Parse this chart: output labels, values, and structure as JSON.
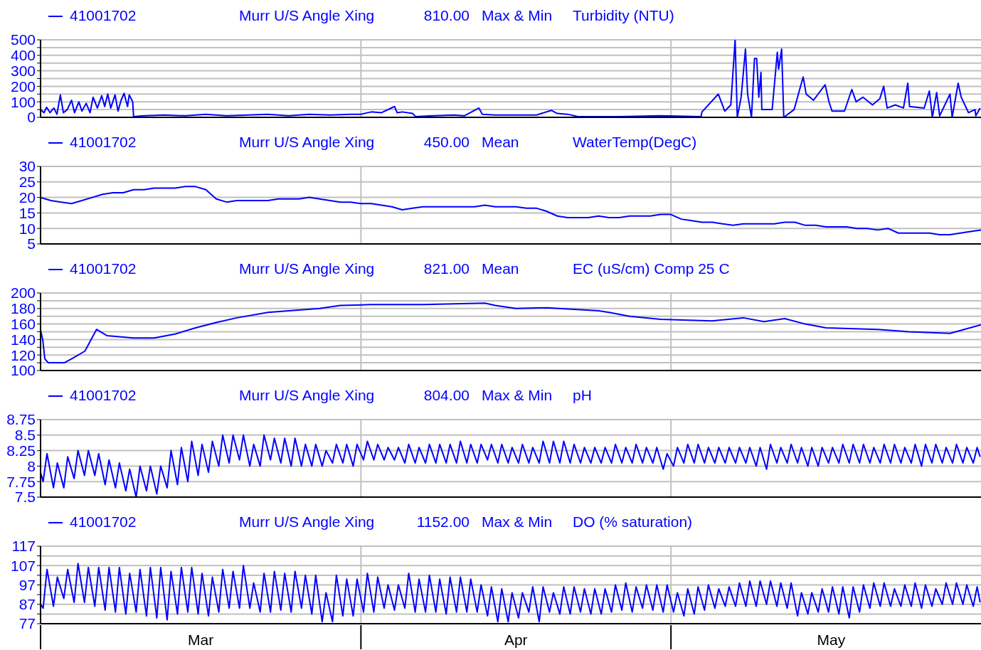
{
  "chart_data": [
    {
      "type": "line",
      "title": "Murr U/S Angle Xing",
      "annotations": [
        "810.00",
        "Max & Min"
      ],
      "ylabel": "Turbidity (NTU)",
      "legend": "top left",
      "grid": true,
      "tick_labels": "y",
      "xlim": [
        "--03-01",
        "--05-31"
      ],
      "xticks": [
        {
          "value": "--03-01",
          "label": null
        },
        {
          "value": "--03-16T12:00",
          "label": "Mar"
        },
        {
          "value": "--04-01",
          "label": null
        },
        {
          "value": "--04-16",
          "label": "Apr"
        },
        {
          "value": "--05-01",
          "label": null
        },
        {
          "value": "--05-16T12:00",
          "label": "May"
        }
      ],
      "ylim": [
        0,
        500
      ],
      "yticks": [
        0,
        {
          "value": 50,
          "label": null
        },
        100,
        {
          "value": 150,
          "label": null
        },
        200,
        {
          "value": 250,
          "label": null
        },
        300,
        {
          "value": 350,
          "label": null
        },
        400,
        {
          "value": 450,
          "label": null
        },
        500
      ],
      "x": [
        "--03-01T00:00",
        "--03-01T08:00",
        "--03-01T14:00",
        "--03-01T22:00",
        "--03-02T07:00",
        "--03-02T14:00",
        "--03-02T22:00",
        "--03-03T05:00",
        "--03-03T14:00",
        "--03-04T00:00",
        "--03-04T07:00",
        "--03-04T17:00",
        "--03-05T00:00",
        "--03-05T10:00",
        "--03-05T19:00",
        "--03-06T02:00",
        "--03-06T12:00",
        "--03-06T22:00",
        "--03-07T05:00",
        "--03-07T12:00",
        "--03-07T19:00",
        "--03-08T05:00",
        "--03-08T12:00",
        "--03-08T19:00",
        "--03-09T02:00",
        "--03-09T10:00",
        "--03-09T14:00",
        "--03-09T22:00",
        "--03-10T00:00",
        "--03-11T00:00",
        "--03-13T00:00",
        "--03-15T00:00",
        "--03-17T00:00",
        "--03-19T00:00",
        "--03-21T00:00",
        "--03-23T00:00",
        "--03-25T00:00",
        "--03-27T00:00",
        "--03-29T00:00",
        "--03-31T00:00",
        "--04-01T00:00",
        "--04-02T00:00",
        "--04-03T00:00",
        "--04-04T06:00",
        "--04-04T12:00",
        "--04-05T00:00",
        "--04-06T00:00",
        "--04-06T07:00",
        "--04-08T00:00",
        "--04-10T00:00",
        "--04-11T00:00",
        "--04-12T10:00",
        "--04-12T18:00",
        "--04-14T00:00",
        "--04-16T00:00",
        "--04-18T00:00",
        "--04-19T10:00",
        "--04-20T00:00",
        "--04-21T00:00",
        "--04-22T00:00",
        "--04-26T00:00",
        "--04-30T00:00",
        "--05-03T22:00",
        "--05-04T00:00",
        "--05-05T14:00",
        "--05-06T05:00",
        "--05-06T19:00",
        "--05-07T05:00",
        "--05-07T10:00",
        "--05-07T19:00",
        "--05-08T05:00",
        "--05-08T10:00",
        "--05-08T19:00",
        "--05-09T02:00",
        "--05-09T07:00",
        "--05-09T12:00",
        "--05-09T17:00",
        "--05-09T19:00",
        "--05-10T19:00",
        "--05-11T07:00",
        "--05-11T10:00",
        "--05-11T17:00",
        "--05-11T22:00",
        "--05-12T22:00",
        "--05-13T19:00",
        "--05-14T02:00",
        "--05-14T19:00",
        "--05-15T22:00",
        "--05-16T07:00",
        "--05-16T14:00",
        "--05-17T19:00",
        "--05-18T12:00",
        "--05-18T22:00",
        "--05-19T14:00",
        "--05-20T12:00",
        "--05-21T05:00",
        "--05-21T14:00",
        "--05-21T22:00",
        "--05-22T17:00",
        "--05-23T12:00",
        "--05-23T22:00",
        "--05-24T02:00",
        "--05-25T12:00",
        "--05-26T00:00",
        "--05-26T07:00",
        "--05-26T17:00",
        "--05-27T00:00",
        "--05-28T00:00",
        "--05-28T05:00",
        "--05-28T19:00",
        "--05-29T02:00",
        "--05-29T19:00",
        "--05-30T10:00",
        "--05-30T12:00",
        "--05-30T22:00"
      ],
      "series": [
        {
          "name": "41001702",
          "color": "#0000ff",
          "values": [
            50,
            30,
            65,
            30,
            60,
            20,
            145,
            30,
            50,
            110,
            30,
            100,
            40,
            90,
            30,
            130,
            60,
            140,
            70,
            150,
            60,
            145,
            40,
            110,
            155,
            70,
            145,
            100,
            5,
            10,
            15,
            10,
            20,
            10,
            15,
            20,
            10,
            20,
            15,
            20,
            20,
            35,
            30,
            70,
            30,
            35,
            25,
            5,
            10,
            15,
            10,
            60,
            20,
            15,
            15,
            15,
            45,
            25,
            20,
            5,
            5,
            10,
            5,
            35,
            150,
            40,
            80,
            500,
            0,
            130,
            440,
            150,
            0,
            380,
            380,
            130,
            290,
            50,
            50,
            420,
            310,
            440,
            0,
            50,
            260,
            150,
            110,
            210,
            100,
            40,
            40,
            180,
            100,
            130,
            80,
            120,
            200,
            60,
            80,
            60,
            220,
            70,
            60,
            170,
            0,
            160,
            10,
            150,
            0,
            220,
            130,
            30,
            50,
            10,
            60
          ]
        }
      ]
    },
    {
      "type": "line",
      "title": "Murr U/S Angle Xing",
      "annotations": [
        "450.00",
        "Mean"
      ],
      "ylabel": "WaterTemp(DegC)",
      "legend": "top left",
      "grid": true,
      "tick_labels": "y",
      "xlim": [
        "--03-01",
        "--05-31"
      ],
      "xticks": [
        {
          "value": "--03-01",
          "label": null
        },
        {
          "value": "--03-16T12:00",
          "label": "Mar"
        },
        {
          "value": "--04-01",
          "label": null
        },
        {
          "value": "--04-16",
          "label": "Apr"
        },
        {
          "value": "--05-01",
          "label": null
        },
        {
          "value": "--05-16T12:00",
          "label": "May"
        }
      ],
      "ylim": [
        5,
        30
      ],
      "yticks": [
        5,
        10,
        15,
        20,
        25,
        30
      ],
      "x": [
        "--03-01",
        "--03-02",
        "--03-03",
        "--03-04",
        "--03-05",
        "--03-06",
        "--03-07",
        "--03-08",
        "--03-09",
        "--03-10",
        "--03-11",
        "--03-12",
        "--03-13",
        "--03-14",
        "--03-15",
        "--03-16",
        "--03-17",
        "--03-18",
        "--03-19",
        "--03-20",
        "--03-21",
        "--03-22",
        "--03-23",
        "--03-24",
        "--03-25",
        "--03-26",
        "--03-27",
        "--03-28",
        "--03-29",
        "--03-30",
        "--03-31",
        "--04-01",
        "--04-02",
        "--04-03",
        "--04-04",
        "--04-05",
        "--04-06",
        "--04-07",
        "--04-08",
        "--04-09",
        "--04-10",
        "--04-11",
        "--04-12",
        "--04-13",
        "--04-14",
        "--04-15",
        "--04-16",
        "--04-17",
        "--04-18",
        "--04-19",
        "--04-20",
        "--04-21",
        "--04-22",
        "--04-23",
        "--04-24",
        "--04-25",
        "--04-26",
        "--04-27",
        "--04-28",
        "--04-29",
        "--04-30",
        "--05-01",
        "--05-02",
        "--05-03",
        "--05-04",
        "--05-05",
        "--05-06",
        "--05-07",
        "--05-08",
        "--05-09",
        "--05-10",
        "--05-11",
        "--05-12",
        "--05-13",
        "--05-14",
        "--05-15",
        "--05-16",
        "--05-17",
        "--05-18",
        "--05-19",
        "--05-20",
        "--05-21",
        "--05-22",
        "--05-23",
        "--05-24",
        "--05-25",
        "--05-26",
        "--05-27",
        "--05-28",
        "--05-29",
        "--05-30",
        "--05-31"
      ],
      "series": [
        {
          "name": "41001702",
          "color": "#0000ff",
          "values": [
            20,
            19,
            18.5,
            18,
            19,
            20,
            21,
            21.5,
            21.5,
            22.5,
            22.5,
            23,
            23,
            23,
            23.5,
            23.5,
            22.5,
            19.5,
            18.5,
            19,
            19,
            19,
            19,
            19.5,
            19.5,
            19.5,
            20,
            19.5,
            19,
            18.5,
            18.5,
            18,
            18,
            17.5,
            17,
            16,
            16.5,
            17,
            17,
            17,
            17,
            17,
            17,
            17.5,
            17,
            17,
            17,
            16.5,
            16.5,
            15.5,
            14,
            13.5,
            13.5,
            13.5,
            14,
            13.5,
            13.5,
            14,
            14,
            14,
            14.5,
            14.5,
            13,
            12.5,
            12,
            12,
            11.5,
            11,
            11.5,
            11.5,
            11.5,
            11.5,
            12,
            12,
            11,
            11,
            10.5,
            10.5,
            10.5,
            10,
            10,
            9.5,
            10,
            8.5,
            8.5,
            8.5,
            8.5,
            8,
            8,
            8.5,
            9,
            9.5
          ]
        }
      ]
    },
    {
      "type": "line",
      "title": "Murr U/S Angle Xing",
      "annotations": [
        "821.00",
        "Mean"
      ],
      "ylabel": "EC (uS/cm) Comp 25 C",
      "legend": "top left",
      "grid": true,
      "tick_labels": "y",
      "xlim": [
        "--03-01",
        "--05-31"
      ],
      "xticks": [
        {
          "value": "--03-01",
          "label": null
        },
        {
          "value": "--03-16T12:00",
          "label": "Mar"
        },
        {
          "value": "--04-01",
          "label": null
        },
        {
          "value": "--04-16",
          "label": "Apr"
        },
        {
          "value": "--05-01",
          "label": null
        },
        {
          "value": "--05-16T12:00",
          "label": "May"
        }
      ],
      "ylim": [
        100,
        200
      ],
      "yticks": [
        100,
        {
          "value": 110,
          "label": null
        },
        120,
        {
          "value": 130,
          "label": null
        },
        140,
        {
          "value": 150,
          "label": null
        },
        160,
        {
          "value": 170,
          "label": null
        },
        180,
        {
          "value": 190,
          "label": null
        },
        200
      ],
      "x": [
        "--03-01T00:00",
        "--03-01T05:00",
        "--03-01T10:00",
        "--03-01T18:00",
        "--03-03T07:00",
        "--03-04T00:00",
        "--03-05T07:00",
        "--03-06T10:00",
        "--03-07T10:00",
        "--03-10T00:00",
        "--03-12T00:00",
        "--03-14T00:00",
        "--03-16T00:00",
        "--03-18T00:00",
        "--03-20T00:00",
        "--03-23T00:00",
        "--03-28T00:00",
        "--03-30T00:00",
        "--04-02T00:00",
        "--04-07T00:00",
        "--04-13T00:00",
        "--04-14T00:00",
        "--04-16T00:00",
        "--04-19T00:00",
        "--04-24T00:00",
        "--04-25T00:00",
        "--04-27T00:00",
        "--04-30T00:00",
        "--05-05T00:00",
        "--05-08T00:00",
        "--05-10T00:00",
        "--05-12T00:00",
        "--05-14T00:00",
        "--05-16T00:00",
        "--05-21T00:00",
        "--05-24T00:00",
        "--05-28T00:00",
        "--05-31T00:00"
      ],
      "series": [
        {
          "name": "41001702",
          "color": "#0000ff",
          "values": [
            152,
            140,
            115,
            110,
            110,
            115,
            125,
            153,
            145,
            142,
            142,
            147,
            155,
            162,
            168,
            175,
            180,
            184,
            185,
            185,
            187,
            184,
            180,
            181,
            177,
            175,
            170,
            166,
            164,
            168,
            163,
            167,
            160,
            155,
            153,
            150,
            148,
            159
          ]
        }
      ]
    },
    {
      "type": "line",
      "title": "Murr U/S Angle Xing",
      "annotations": [
        "804.00",
        "Max & Min"
      ],
      "ylabel": "pH",
      "legend": "top left",
      "grid": true,
      "tick_labels": "y",
      "xlim": [
        "--03-01",
        "--05-31"
      ],
      "xticks": [
        {
          "value": "--03-01",
          "label": null
        },
        {
          "value": "--03-16T12:00",
          "label": "Mar"
        },
        {
          "value": "--04-01",
          "label": null
        },
        {
          "value": "--04-16",
          "label": "Apr"
        },
        {
          "value": "--05-01",
          "label": null
        },
        {
          "value": "--05-16T12:00",
          "label": "May"
        }
      ],
      "ylim": [
        7.5,
        8.75
      ],
      "yticks": [
        7.5,
        7.75,
        8,
        8.25,
        8.5,
        8.75
      ],
      "x": [
        "--03-01T00:00",
        "--03-01T06:00",
        "--03-01T15:00",
        "--03-02T06:00",
        "--03-02T15:00",
        "--03-03T06:00",
        "--03-03T15:00",
        "--03-04T06:00",
        "--03-04T15:00",
        "--03-05T06:00",
        "--03-05T15:00",
        "--03-06T06:00",
        "--03-06T15:00",
        "--03-07T06:00",
        "--03-07T15:00",
        "--03-08T06:00",
        "--03-08T15:00",
        "--03-09T06:00",
        "--03-09T15:00",
        "--03-10T06:00",
        "--03-10T15:00",
        "--03-11T06:00",
        "--03-11T15:00",
        "--03-12T06:00",
        "--03-12T15:00",
        "--03-13T06:00",
        "--03-13T15:00",
        "--03-14T06:00",
        "--03-14T15:00",
        "--03-15T06:00",
        "--03-15T15:00",
        "--03-16T06:00",
        "--03-16T15:00",
        "--03-17T06:00",
        "--03-17T15:00",
        "--03-18T06:00",
        "--03-18T15:00",
        "--03-19T06:00",
        "--03-19T15:00",
        "--03-20T06:00",
        "--03-20T15:00",
        "--03-21T06:00",
        "--03-21T15:00",
        "--03-22T06:00",
        "--03-22T15:00",
        "--03-23T06:00",
        "--03-23T15:00",
        "--03-24T06:00",
        "--03-24T15:00",
        "--03-25T06:00",
        "--03-25T15:00",
        "--03-26T06:00",
        "--03-26T15:00",
        "--03-27T06:00",
        "--03-27T15:00",
        "--03-28T06:00",
        "--03-28T15:00",
        "--03-29T06:00",
        "--03-29T15:00",
        "--03-30T06:00",
        "--03-30T15:00",
        "--03-31T06:00",
        "--03-31T15:00",
        "--04-01T06:00",
        "--04-01T15:00",
        "--04-02T06:00",
        "--04-02T15:00",
        "--04-03T06:00",
        "--04-03T15:00",
        "--04-04T06:00",
        "--04-04T15:00",
        "--04-05T06:00",
        "--04-05T15:00",
        "--04-06T06:00",
        "--04-06T15:00",
        "--04-07T06:00",
        "--04-07T15:00",
        "--04-08T06:00",
        "--04-08T15:00",
        "--04-09T06:00",
        "--04-09T15:00",
        "--04-10T06:00",
        "--04-10T15:00",
        "--04-11T06:00",
        "--04-11T15:00",
        "--04-12T06:00",
        "--04-12T15:00",
        "--04-13T06:00",
        "--04-13T15:00",
        "--04-14T06:00",
        "--04-14T15:00",
        "--04-15T06:00",
        "--04-15T15:00",
        "--04-16T06:00",
        "--04-16T15:00",
        "--04-17T06:00",
        "--04-17T15:00",
        "--04-18T06:00",
        "--04-18T15:00",
        "--04-19T06:00",
        "--04-19T15:00",
        "--04-20T06:00",
        "--04-20T15:00",
        "--04-21T06:00",
        "--04-21T15:00",
        "--04-22T06:00",
        "--04-22T15:00",
        "--04-23T06:00",
        "--04-23T15:00",
        "--04-24T06:00",
        "--04-24T15:00",
        "--04-25T06:00",
        "--04-25T15:00",
        "--04-26T06:00",
        "--04-26T15:00",
        "--04-27T06:00",
        "--04-27T15:00",
        "--04-28T06:00",
        "--04-28T15:00",
        "--04-29T06:00",
        "--04-29T15:00",
        "--04-30T06:00",
        "--04-30T15:00",
        "--05-01T06:00",
        "--05-01T15:00",
        "--05-02T06:00",
        "--05-02T15:00",
        "--05-03T06:00",
        "--05-03T15:00",
        "--05-04T06:00",
        "--05-04T15:00",
        "--05-05T06:00",
        "--05-05T15:00",
        "--05-06T06:00",
        "--05-06T15:00",
        "--05-07T06:00",
        "--05-07T15:00",
        "--05-08T06:00",
        "--05-08T15:00",
        "--05-09T06:00",
        "--05-09T15:00",
        "--05-10T06:00",
        "--05-10T15:00",
        "--05-11T06:00",
        "--05-11T15:00",
        "--05-12T06:00",
        "--05-12T15:00",
        "--05-13T06:00",
        "--05-13T15:00",
        "--05-14T06:00",
        "--05-14T15:00",
        "--05-15T06:00",
        "--05-15T15:00",
        "--05-16T06:00",
        "--05-16T15:00",
        "--05-17T06:00",
        "--05-17T15:00",
        "--05-18T06:00",
        "--05-18T15:00",
        "--05-19T06:00",
        "--05-19T15:00",
        "--05-20T06:00",
        "--05-20T15:00",
        "--05-21T06:00",
        "--05-21T15:00",
        "--05-22T06:00",
        "--05-22T15:00",
        "--05-23T06:00",
        "--05-23T15:00",
        "--05-24T06:00",
        "--05-24T15:00",
        "--05-25T06:00",
        "--05-25T15:00",
        "--05-26T06:00",
        "--05-26T15:00",
        "--05-27T06:00",
        "--05-27T15:00",
        "--05-28T06:00",
        "--05-28T15:00",
        "--05-29T06:00",
        "--05-29T15:00",
        "--05-30T06:00",
        "--05-30T15:00",
        "--05-30T22:00"
      ],
      "series": [
        {
          "name": "41001702",
          "color": "#0000ff",
          "values": [
            7.9,
            7.75,
            8.2,
            7.65,
            8.05,
            7.65,
            8.15,
            7.8,
            8.25,
            7.85,
            8.25,
            7.85,
            8.2,
            7.7,
            8.1,
            7.65,
            8.05,
            7.6,
            7.95,
            7.5,
            8,
            7.6,
            8,
            7.55,
            8,
            7.65,
            8.25,
            7.7,
            8.3,
            7.75,
            8.4,
            7.85,
            8.35,
            7.9,
            8.4,
            8,
            8.5,
            8.05,
            8.5,
            8.1,
            8.5,
            8,
            8.35,
            8,
            8.5,
            8.1,
            8.45,
            8.05,
            8.45,
            8,
            8.45,
            8,
            8.35,
            8,
            8.35,
            8,
            8.25,
            8.05,
            8.35,
            8.05,
            8.35,
            8,
            8.35,
            8.1,
            8.4,
            8.1,
            8.35,
            8.1,
            8.3,
            8.1,
            8.3,
            8.05,
            8.35,
            8.05,
            8.3,
            8.05,
            8.35,
            8.05,
            8.35,
            8.05,
            8.35,
            8.05,
            8.4,
            8.05,
            8.35,
            8.05,
            8.35,
            8.1,
            8.35,
            8.05,
            8.35,
            8.05,
            8.3,
            8.05,
            8.35,
            8.05,
            8.3,
            8.05,
            8.4,
            8.05,
            8.4,
            8.05,
            8.4,
            8.05,
            8.35,
            8.05,
            8.3,
            8.05,
            8.3,
            8.05,
            8.3,
            8.05,
            8.35,
            8.05,
            8.3,
            8.05,
            8.35,
            8.05,
            8.3,
            8.05,
            8.3,
            7.95,
            8.2,
            8,
            8.3,
            8.05,
            8.35,
            8.05,
            8.35,
            8.05,
            8.3,
            8.05,
            8.3,
            8.05,
            8.3,
            8.05,
            8.3,
            8.05,
            8.3,
            8,
            8.3,
            7.95,
            8.35,
            8.05,
            8.3,
            8.05,
            8.35,
            8.05,
            8.3,
            8,
            8.3,
            8,
            8.3,
            8.05,
            8.3,
            8.05,
            8.35,
            8.05,
            8.35,
            8.05,
            8.35,
            8.05,
            8.3,
            8.05,
            8.35,
            8.05,
            8.35,
            8.05,
            8.3,
            8.05,
            8.35,
            8,
            8.35,
            8.05,
            8.35,
            8.05,
            8.3,
            8.05,
            8.35,
            8.05,
            8.3,
            8.05,
            8.3,
            8.15
          ]
        }
      ]
    },
    {
      "type": "line",
      "title": "Murr U/S Angle Xing",
      "annotations": [
        "1152.00",
        "Max & Min"
      ],
      "ylabel": "DO (% saturation)",
      "legend": "top left",
      "grid": true,
      "xlim": [
        "--03-01",
        "--05-31"
      ],
      "xticks": [
        {
          "value": "--03-01",
          "label": null
        },
        {
          "value": "--03-16T12:00",
          "label": "Mar"
        },
        {
          "value": "--04-01",
          "label": null
        },
        {
          "value": "--04-16",
          "label": "Apr"
        },
        {
          "value": "--05-01",
          "label": null
        },
        {
          "value": "--05-16T12:00",
          "label": "May"
        }
      ],
      "ylim": [
        77,
        117
      ],
      "yticks": [
        77,
        {
          "value": 82,
          "label": null
        },
        87,
        {
          "value": 92,
          "label": null
        },
        97,
        {
          "value": 102,
          "label": null
        },
        107,
        {
          "value": 112,
          "label": null
        },
        117
      ],
      "x": [
        "--03-01T00:00",
        "--03-01T06:00",
        "--03-01T15:00",
        "--03-02T06:00",
        "--03-02T15:00",
        "--03-03T06:00",
        "--03-03T15:00",
        "--03-04T06:00",
        "--03-04T15:00",
        "--03-05T06:00",
        "--03-05T15:00",
        "--03-06T06:00",
        "--03-06T15:00",
        "--03-07T06:00",
        "--03-07T15:00",
        "--03-08T06:00",
        "--03-08T15:00",
        "--03-09T06:00",
        "--03-09T15:00",
        "--03-10T06:00",
        "--03-10T15:00",
        "--03-11T06:00",
        "--03-11T15:00",
        "--03-12T06:00",
        "--03-12T15:00",
        "--03-13T06:00",
        "--03-13T15:00",
        "--03-14T06:00",
        "--03-14T15:00",
        "--03-15T06:00",
        "--03-15T15:00",
        "--03-16T06:00",
        "--03-16T15:00",
        "--03-17T06:00",
        "--03-17T15:00",
        "--03-18T06:00",
        "--03-18T15:00",
        "--03-19T06:00",
        "--03-19T15:00",
        "--03-20T06:00",
        "--03-20T15:00",
        "--03-21T06:00",
        "--03-21T15:00",
        "--03-22T06:00",
        "--03-22T15:00",
        "--03-23T06:00",
        "--03-23T15:00",
        "--03-24T06:00",
        "--03-24T15:00",
        "--03-25T06:00",
        "--03-25T15:00",
        "--03-26T06:00",
        "--03-26T15:00",
        "--03-27T06:00",
        "--03-27T15:00",
        "--03-28T06:00",
        "--03-28T15:00",
        "--03-29T06:00",
        "--03-29T15:00",
        "--03-30T06:00",
        "--03-30T15:00",
        "--03-31T06:00",
        "--03-31T15:00",
        "--04-01T06:00",
        "--04-01T15:00",
        "--04-02T06:00",
        "--04-02T15:00",
        "--04-03T06:00",
        "--04-03T15:00",
        "--04-04T06:00",
        "--04-04T15:00",
        "--04-05T06:00",
        "--04-05T15:00",
        "--04-06T06:00",
        "--04-06T15:00",
        "--04-07T06:00",
        "--04-07T15:00",
        "--04-08T06:00",
        "--04-08T15:00",
        "--04-09T06:00",
        "--04-09T15:00",
        "--04-10T06:00",
        "--04-10T15:00",
        "--04-11T06:00",
        "--04-11T15:00",
        "--04-12T06:00",
        "--04-12T15:00",
        "--04-13T06:00",
        "--04-13T15:00",
        "--04-14T06:00",
        "--04-14T15:00",
        "--04-15T06:00",
        "--04-15T15:00",
        "--04-16T06:00",
        "--04-16T15:00",
        "--04-17T06:00",
        "--04-17T15:00",
        "--04-18T06:00",
        "--04-18T15:00",
        "--04-19T06:00",
        "--04-19T15:00",
        "--04-20T06:00",
        "--04-20T15:00",
        "--04-21T06:00",
        "--04-21T15:00",
        "--04-22T06:00",
        "--04-22T15:00",
        "--04-23T06:00",
        "--04-23T15:00",
        "--04-24T06:00",
        "--04-24T15:00",
        "--04-25T06:00",
        "--04-25T15:00",
        "--04-26T06:00",
        "--04-26T15:00",
        "--04-27T06:00",
        "--04-27T15:00",
        "--04-28T06:00",
        "--04-28T15:00",
        "--04-29T06:00",
        "--04-29T15:00",
        "--04-30T06:00",
        "--04-30T15:00",
        "--05-01T06:00",
        "--05-01T15:00",
        "--05-02T06:00",
        "--05-02T15:00",
        "--05-03T06:00",
        "--05-03T15:00",
        "--05-04T06:00",
        "--05-04T15:00",
        "--05-05T06:00",
        "--05-05T15:00",
        "--05-06T06:00",
        "--05-06T15:00",
        "--05-07T06:00",
        "--05-07T15:00",
        "--05-08T06:00",
        "--05-08T15:00",
        "--05-09T06:00",
        "--05-09T15:00",
        "--05-10T06:00",
        "--05-10T15:00",
        "--05-11T06:00",
        "--05-11T15:00",
        "--05-12T06:00",
        "--05-12T15:00",
        "--05-13T06:00",
        "--05-13T15:00",
        "--05-14T06:00",
        "--05-14T15:00",
        "--05-15T06:00",
        "--05-15T15:00",
        "--05-16T06:00",
        "--05-16T15:00",
        "--05-17T06:00",
        "--05-17T15:00",
        "--05-18T06:00",
        "--05-18T15:00",
        "--05-19T06:00",
        "--05-19T15:00",
        "--05-20T06:00",
        "--05-20T15:00",
        "--05-21T06:00",
        "--05-21T15:00",
        "--05-22T06:00",
        "--05-22T15:00",
        "--05-23T06:00",
        "--05-23T15:00",
        "--05-24T06:00",
        "--05-24T15:00",
        "--05-25T06:00",
        "--05-25T15:00",
        "--05-26T06:00",
        "--05-26T15:00",
        "--05-27T06:00",
        "--05-27T15:00",
        "--05-28T06:00",
        "--05-28T15:00",
        "--05-29T06:00",
        "--05-29T15:00",
        "--05-30T06:00",
        "--05-30T15:00",
        "--05-30T22:00"
      ],
      "series": [
        {
          "name": "41001702",
          "color": "#0000ff",
          "values": [
            87,
            85,
            105,
            86,
            101,
            90,
            105,
            88,
            108,
            88,
            106,
            86,
            106,
            84,
            106,
            83,
            106,
            82,
            103,
            83,
            105,
            81,
            106,
            80,
            106,
            79,
            104,
            82,
            106,
            83,
            106,
            82,
            103,
            81,
            101,
            83,
            105,
            85,
            104,
            85,
            107,
            85,
            98,
            83,
            103,
            83,
            104,
            84,
            103,
            83,
            104,
            85,
            102,
            82,
            102,
            78,
            93,
            78,
            102,
            81,
            100,
            81,
            100,
            83,
            103,
            83,
            101,
            85,
            97,
            84,
            97,
            85,
            103,
            83,
            100,
            83,
            102,
            83,
            100,
            82,
            101,
            83,
            101,
            83,
            100,
            83,
            97,
            81,
            96,
            78,
            95,
            78,
            93,
            80,
            93,
            83,
            96,
            78,
            96,
            83,
            93,
            82,
            96,
            82,
            96,
            83,
            95,
            82,
            95,
            82,
            95,
            83,
            97,
            84,
            98,
            83,
            96,
            85,
            97,
            84,
            97,
            83,
            97,
            83,
            93,
            81,
            95,
            82,
            96,
            84,
            97,
            85,
            95,
            86,
            96,
            86,
            98,
            86,
            99,
            86,
            99,
            87,
            99,
            86,
            98,
            85,
            98,
            81,
            93,
            82,
            93,
            83,
            95,
            83,
            96,
            82,
            96,
            80,
            96,
            83,
            97,
            85,
            98,
            86,
            98,
            86,
            95,
            86,
            97,
            86,
            98,
            85,
            97,
            86,
            95,
            87,
            98,
            87,
            98,
            87,
            97,
            86,
            96,
            88
          ]
        }
      ]
    }
  ]
}
